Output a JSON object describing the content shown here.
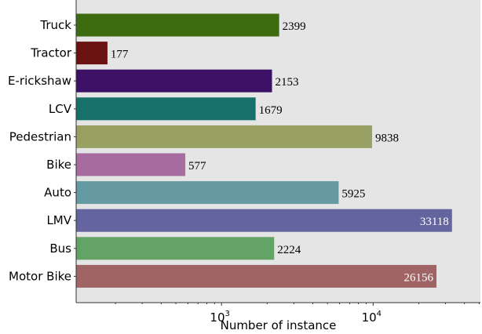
{
  "chart_data": {
    "type": "bar",
    "orientation": "horizontal",
    "title": "",
    "xlabel": "Number of instance",
    "ylabel": "",
    "xscale": "log",
    "xlim": [
      110,
      51000
    ],
    "xticks": [
      {
        "value": 1000,
        "base": "10",
        "exp": "3"
      },
      {
        "value": 10000,
        "base": "10",
        "exp": "4"
      }
    ],
    "grid": false,
    "background": "#e5e5e5",
    "categories": [
      "Truck",
      "Tractor",
      "E-rickshaw",
      "LCV",
      "Pedestrian",
      "Bike",
      "Auto",
      "LMV",
      "Bus",
      "Motor Bike"
    ],
    "values": [
      2399,
      177,
      2153,
      1679,
      9838,
      577,
      5925,
      33118,
      2224,
      26156
    ],
    "labels": [
      "2399",
      "177",
      "2153",
      "1679",
      "9838",
      "577",
      "5925",
      "33118",
      "2224",
      "26156"
    ],
    "colors": [
      "#3d6b0f",
      "#6b1212",
      "#3d1166",
      "#177069",
      "#99a064",
      "#a86ba0",
      "#659aa3",
      "#64649f",
      "#64a366",
      "#a06464"
    ]
  }
}
